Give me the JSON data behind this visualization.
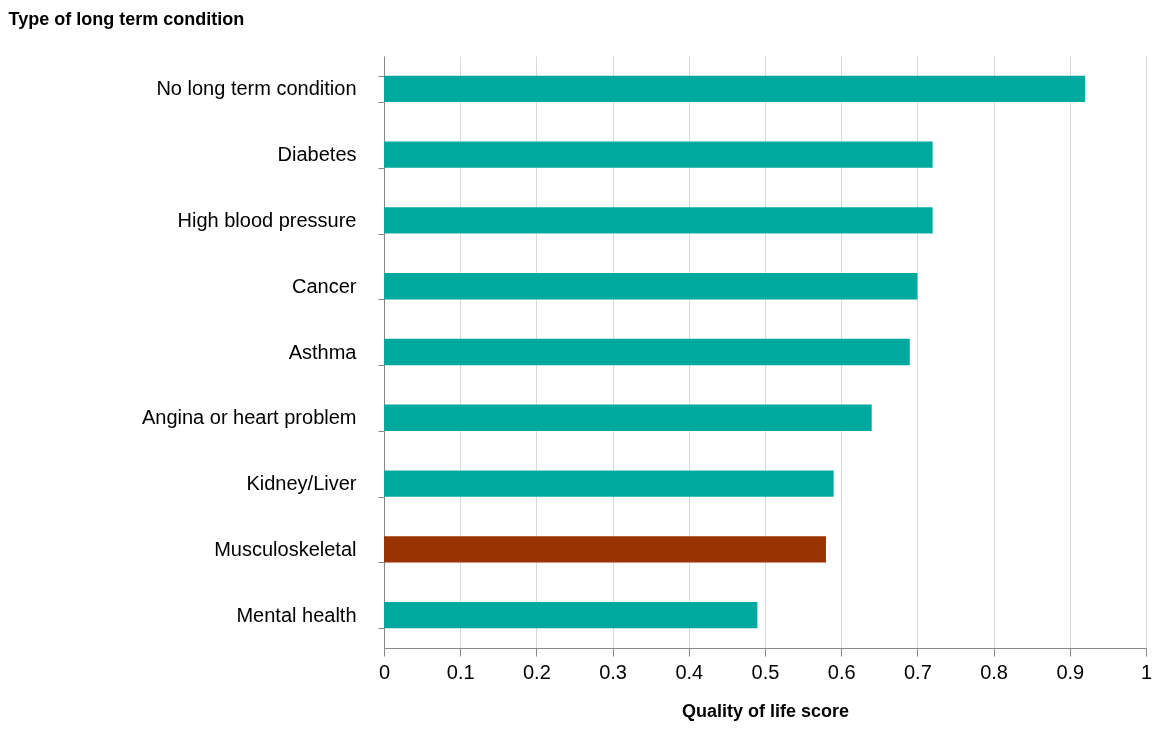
{
  "chart_data": {
    "type": "bar",
    "orientation": "horizontal",
    "ylabel": "Type of long term condition",
    "xlabel": "Quality of life score",
    "categories": [
      "No long term condition",
      "Diabetes",
      "High blood pressure",
      "Cancer",
      "Asthma",
      "Angina or heart problem",
      "Kidney/Liver",
      "Musculoskeletal",
      "Mental health"
    ],
    "values": [
      0.92,
      0.72,
      0.72,
      0.7,
      0.69,
      0.64,
      0.59,
      0.58,
      0.49
    ],
    "colors": [
      "#00a99d",
      "#00a99d",
      "#00a99d",
      "#00a99d",
      "#00a99d",
      "#00a99d",
      "#00a99d",
      "#993300",
      "#00a99d"
    ],
    "xlim": [
      0,
      1
    ],
    "xticks": [
      0,
      0.1,
      0.2,
      0.3,
      0.4,
      0.5,
      0.6,
      0.7,
      0.8,
      0.9,
      1
    ],
    "grid": "x"
  }
}
